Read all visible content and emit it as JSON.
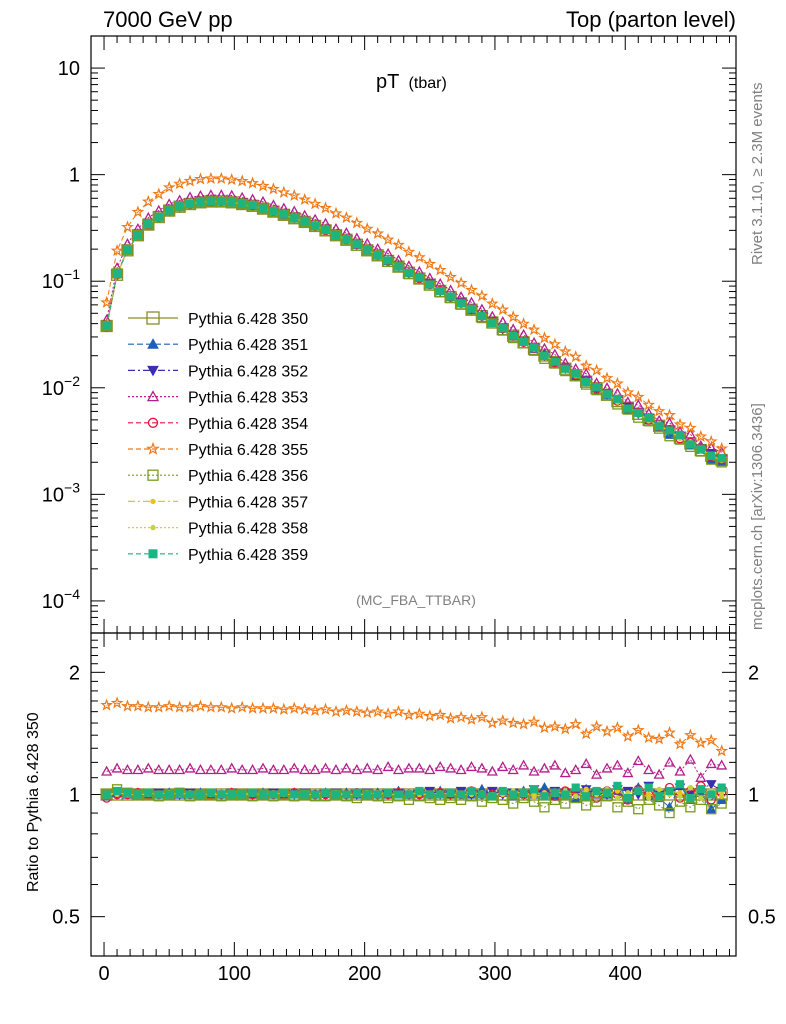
{
  "header": {
    "left": "7000 GeV pp",
    "right": "Top (parton level)"
  },
  "plot_title": {
    "main": "pT",
    "sub": "(tbar)"
  },
  "side_labels": {
    "rivet": "Rivet 3.1.10, ≥ 2.3M events",
    "mcplots": "mcplots.cern.ch [arXiv:1306.3436]"
  },
  "analysis_tag": "(MC_FBA_TTBAR)",
  "ratio_ylabel": "Ratio to Pythia 6.428 350",
  "chart_data": [
    {
      "type": "scatter",
      "panel": "main",
      "yscale": "log",
      "xlim": [
        -10,
        485
      ],
      "ylim": [
        5e-05,
        20
      ],
      "xticks": [
        0,
        100,
        200,
        300,
        400
      ],
      "yticks": [
        {
          "value": 0.0001,
          "base": "10",
          "exp": "−4"
        },
        {
          "value": 0.001,
          "base": "10",
          "exp": "−3"
        },
        {
          "value": 0.01,
          "base": "10",
          "exp": "−2"
        },
        {
          "value": 0.1,
          "base": "10",
          "exp": "−1"
        },
        {
          "value": 1,
          "base": "1",
          "exp": ""
        },
        {
          "value": 10,
          "base": "10",
          "exp": ""
        }
      ],
      "x": [
        2,
        10,
        18,
        26,
        34,
        42,
        50,
        58,
        66,
        74,
        82,
        90,
        98,
        106,
        114,
        122,
        130,
        138,
        146,
        154,
        162,
        170,
        178,
        186,
        194,
        202,
        210,
        218,
        226,
        234,
        242,
        250,
        258,
        266,
        274,
        282,
        290,
        298,
        306,
        314,
        322,
        330,
        338,
        346,
        354,
        362,
        370,
        378,
        386,
        394,
        402,
        410,
        418,
        426,
        434,
        442,
        450,
        458,
        466,
        474
      ],
      "reference_values": [
        0.038,
        0.115,
        0.195,
        0.27,
        0.34,
        0.4,
        0.46,
        0.5,
        0.53,
        0.55,
        0.56,
        0.56,
        0.55,
        0.53,
        0.51,
        0.48,
        0.45,
        0.42,
        0.39,
        0.36,
        0.33,
        0.3,
        0.27,
        0.245,
        0.22,
        0.195,
        0.175,
        0.155,
        0.137,
        0.12,
        0.106,
        0.093,
        0.081,
        0.071,
        0.062,
        0.054,
        0.047,
        0.041,
        0.0355,
        0.0308,
        0.0267,
        0.0232,
        0.0201,
        0.0174,
        0.0151,
        0.0131,
        0.0114,
        0.0099,
        0.0086,
        0.0075,
        0.0065,
        0.0057,
        0.005,
        0.0044,
        0.0039,
        0.0034,
        0.003,
        0.0026,
        0.0023,
        0.0021
      ],
      "series": [
        {
          "name": "Pythia 6.428 350",
          "color": "#8c8c28",
          "marker": "open-square",
          "dash": "",
          "ratio": [
            1.0,
            1.0,
            1.0,
            1.0,
            1.0,
            1.0,
            1.0,
            1.0,
            1.0,
            1.0,
            1.0,
            1.0,
            1.0,
            1.0,
            1.0,
            1.0,
            1.0,
            1.0,
            1.0,
            1.0,
            1.0,
            1.0,
            1.0,
            1.0,
            1.0,
            1.0,
            1.0,
            1.0,
            1.0,
            1.0,
            1.0,
            1.0,
            1.0,
            1.0,
            1.0,
            1.0,
            1.0,
            1.0,
            1.0,
            1.0,
            1.0,
            1.0,
            1.0,
            1.0,
            1.0,
            1.0,
            1.0,
            1.0,
            1.0,
            1.0,
            1.0,
            1.0,
            1.0,
            1.0,
            1.0,
            1.0,
            1.0,
            1.0,
            1.0,
            1.0
          ]
        },
        {
          "name": "Pythia 6.428 351",
          "color": "#1f5fb4",
          "marker": "filled-triangle-up",
          "dash": "6,3",
          "ratio": [
            0.99,
            1.01,
            1.0,
            1.01,
            1.0,
            1.0,
            1.01,
            1.0,
            1.0,
            1.01,
            1.0,
            1.0,
            1.01,
            1.0,
            1.0,
            1.01,
            1.0,
            1.0,
            1.01,
            1.0,
            1.0,
            1.01,
            1.0,
            1.01,
            1.0,
            1.0,
            1.01,
            1.0,
            1.02,
            1.0,
            1.01,
            1.0,
            1.02,
            1.0,
            1.01,
            1.0,
            1.03,
            1.0,
            1.01,
            0.99,
            1.02,
            1.0,
            1.04,
            0.99,
            1.01,
            0.98,
            1.03,
            1.0,
            1.0,
            1.02,
            0.97,
            1.04,
            0.99,
            0.98,
            0.93,
            1.05,
            0.97,
            1.01,
            0.92,
            0.97
          ]
        },
        {
          "name": "Pythia 6.428 352",
          "color": "#3b2fb0",
          "marker": "filled-triangle-down",
          "dash": "7,3,2,3",
          "ratio": [
            1.0,
            1.0,
            1.01,
            1.0,
            1.0,
            1.01,
            1.0,
            1.0,
            1.01,
            1.0,
            1.0,
            1.0,
            1.01,
            1.0,
            1.0,
            1.0,
            1.01,
            1.0,
            1.0,
            1.01,
            1.0,
            1.0,
            1.01,
            1.0,
            1.0,
            1.01,
            1.0,
            1.0,
            1.01,
            1.0,
            1.0,
            1.02,
            1.0,
            1.0,
            1.02,
            1.0,
            1.0,
            1.02,
            1.0,
            1.01,
            1.0,
            1.03,
            1.0,
            1.02,
            1.01,
            1.0,
            1.03,
            1.01,
            1.0,
            1.03,
            1.02,
            1.0,
            1.05,
            1.0,
            1.01,
            1.04,
            1.0,
            1.03,
            1.06,
            1.02
          ]
        },
        {
          "name": "Pythia 6.428 353",
          "color": "#b41e8c",
          "marker": "open-triangle-up",
          "dash": "2,2",
          "ratio": [
            1.14,
            1.16,
            1.15,
            1.15,
            1.16,
            1.15,
            1.15,
            1.15,
            1.16,
            1.15,
            1.15,
            1.15,
            1.16,
            1.15,
            1.15,
            1.16,
            1.15,
            1.15,
            1.16,
            1.15,
            1.15,
            1.16,
            1.15,
            1.16,
            1.15,
            1.16,
            1.15,
            1.17,
            1.15,
            1.16,
            1.16,
            1.15,
            1.17,
            1.16,
            1.15,
            1.17,
            1.16,
            1.14,
            1.17,
            1.15,
            1.18,
            1.14,
            1.16,
            1.18,
            1.13,
            1.15,
            1.19,
            1.12,
            1.16,
            1.18,
            1.13,
            1.21,
            1.15,
            1.12,
            1.2,
            1.14,
            1.22,
            1.1,
            1.19,
            1.18
          ]
        },
        {
          "name": "Pythia 6.428 354",
          "color": "#e6143c",
          "marker": "open-circle",
          "dash": "5,3",
          "ratio": [
            0.98,
            1.0,
            1.0,
            1.01,
            1.0,
            1.0,
            1.0,
            1.01,
            1.0,
            1.0,
            1.0,
            1.0,
            1.01,
            1.0,
            1.0,
            1.0,
            1.0,
            1.0,
            1.01,
            1.0,
            1.0,
            1.0,
            1.0,
            1.0,
            1.01,
            1.0,
            1.0,
            1.0,
            1.01,
            1.0,
            1.0,
            1.0,
            1.01,
            1.0,
            1.0,
            1.02,
            1.0,
            1.0,
            1.01,
            1.0,
            1.0,
            1.02,
            1.0,
            0.99,
            1.02,
            1.01,
            1.0,
            0.98,
            1.02,
            1.0,
            0.97,
            1.03,
            1.0,
            0.99,
            1.04,
            0.98,
            1.02,
            1.05,
            0.97,
            1.01
          ]
        },
        {
          "name": "Pythia 6.428 355",
          "color": "#f07814",
          "marker": "open-star",
          "dash": "5,3",
          "ratio": [
            1.66,
            1.68,
            1.65,
            1.65,
            1.64,
            1.64,
            1.65,
            1.64,
            1.64,
            1.65,
            1.64,
            1.64,
            1.63,
            1.64,
            1.63,
            1.63,
            1.63,
            1.62,
            1.63,
            1.62,
            1.61,
            1.62,
            1.6,
            1.61,
            1.6,
            1.59,
            1.6,
            1.58,
            1.6,
            1.57,
            1.58,
            1.56,
            1.57,
            1.54,
            1.55,
            1.53,
            1.55,
            1.5,
            1.52,
            1.5,
            1.49,
            1.51,
            1.46,
            1.47,
            1.45,
            1.49,
            1.41,
            1.47,
            1.43,
            1.46,
            1.39,
            1.44,
            1.38,
            1.37,
            1.42,
            1.33,
            1.4,
            1.34,
            1.36,
            1.28
          ]
        },
        {
          "name": "Pythia 6.428 356",
          "color": "#7a9c1e",
          "marker": "open-square",
          "dash": "2,2",
          "ratio": [
            1.0,
            1.03,
            1.01,
            1.0,
            1.0,
            0.99,
            1.0,
            1.01,
            0.99,
            1.0,
            1.0,
            0.99,
            1.0,
            1.0,
            0.99,
            1.0,
            0.99,
            1.0,
            0.99,
            1.0,
            0.99,
            0.99,
            1.0,
            0.99,
            0.98,
            1.0,
            0.99,
            0.98,
            0.99,
            0.97,
            0.99,
            0.98,
            0.97,
            0.98,
            0.97,
            0.99,
            0.96,
            0.98,
            0.97,
            0.95,
            0.98,
            0.96,
            0.93,
            0.97,
            0.95,
            0.98,
            0.94,
            0.96,
            0.99,
            0.93,
            0.96,
            0.92,
            0.97,
            0.94,
            0.9,
            0.96,
            0.93,
            0.97,
            0.92,
            0.95
          ]
        },
        {
          "name": "Pythia 6.428 357",
          "color": "#e6c31e",
          "marker": "small-dot",
          "dash": "7,3,2,3",
          "ratio": [
            1.0,
            1.01,
            1.0,
            1.0,
            1.01,
            1.0,
            1.0,
            1.0,
            1.01,
            1.0,
            1.0,
            1.0,
            1.0,
            1.0,
            1.01,
            1.0,
            1.0,
            1.0,
            1.0,
            1.0,
            1.0,
            1.01,
            1.0,
            1.0,
            1.0,
            1.01,
            1.0,
            1.0,
            1.0,
            1.01,
            1.0,
            1.0,
            1.01,
            1.0,
            1.0,
            1.02,
            1.0,
            1.0,
            1.01,
            1.0,
            1.02,
            0.99,
            1.0,
            1.02,
            1.0,
            0.99,
            1.03,
            1.0,
            1.0,
            1.02,
            0.99,
            1.03,
            1.0,
            0.98,
            1.02,
            1.01,
            0.98,
            1.04,
            1.0,
            0.99
          ]
        },
        {
          "name": "Pythia 6.428 358",
          "color": "#c8d23c",
          "marker": "small-dot",
          "dash": "2,2",
          "ratio": [
            1.0,
            1.0,
            1.01,
            1.0,
            1.0,
            1.0,
            1.01,
            1.0,
            1.0,
            1.0,
            1.0,
            1.01,
            1.0,
            1.0,
            1.0,
            1.0,
            1.01,
            1.0,
            1.0,
            1.0,
            1.0,
            1.0,
            1.01,
            1.0,
            1.0,
            1.0,
            1.01,
            1.0,
            1.0,
            1.0,
            1.01,
            1.0,
            1.0,
            1.01,
            1.0,
            1.0,
            1.01,
            1.0,
            1.0,
            1.02,
            1.0,
            1.0,
            1.01,
            1.0,
            1.02,
            0.99,
            1.01,
            1.0,
            1.03,
            0.98,
            1.01,
            1.02,
            0.98,
            1.03,
            1.0,
            0.99,
            1.04,
            0.98,
            1.02,
            1.01
          ]
        },
        {
          "name": "Pythia 6.428 359",
          "color": "#1eb482",
          "marker": "filled-square",
          "dash": "5,3",
          "ratio": [
            1.0,
            1.02,
            1.01,
            1.0,
            1.01,
            1.0,
            1.0,
            1.01,
            1.0,
            1.0,
            1.01,
            1.0,
            1.0,
            1.0,
            1.01,
            1.0,
            1.0,
            1.01,
            1.0,
            1.0,
            1.0,
            1.01,
            1.0,
            1.0,
            1.01,
            1.0,
            1.0,
            1.01,
            1.0,
            1.0,
            1.02,
            1.0,
            1.0,
            1.01,
            1.0,
            1.02,
            1.0,
            0.99,
            1.02,
            1.0,
            1.01,
            1.03,
            0.99,
            1.01,
            1.0,
            1.04,
            0.99,
            1.02,
            1.01,
            1.05,
            0.98,
            1.02,
            1.04,
            0.99,
            1.02,
            1.06,
            0.98,
            1.03,
            1.0,
            1.04
          ]
        }
      ]
    },
    {
      "type": "scatter",
      "panel": "ratio",
      "yscale": "log",
      "ylim": [
        0.4,
        2.5
      ],
      "yticks": [
        {
          "value": 0.5,
          "label": "0.5"
        },
        {
          "value": 1,
          "label": "1"
        },
        {
          "value": 2,
          "label": "2"
        }
      ],
      "ylabel": "Ratio to Pythia 6.428 350"
    }
  ]
}
